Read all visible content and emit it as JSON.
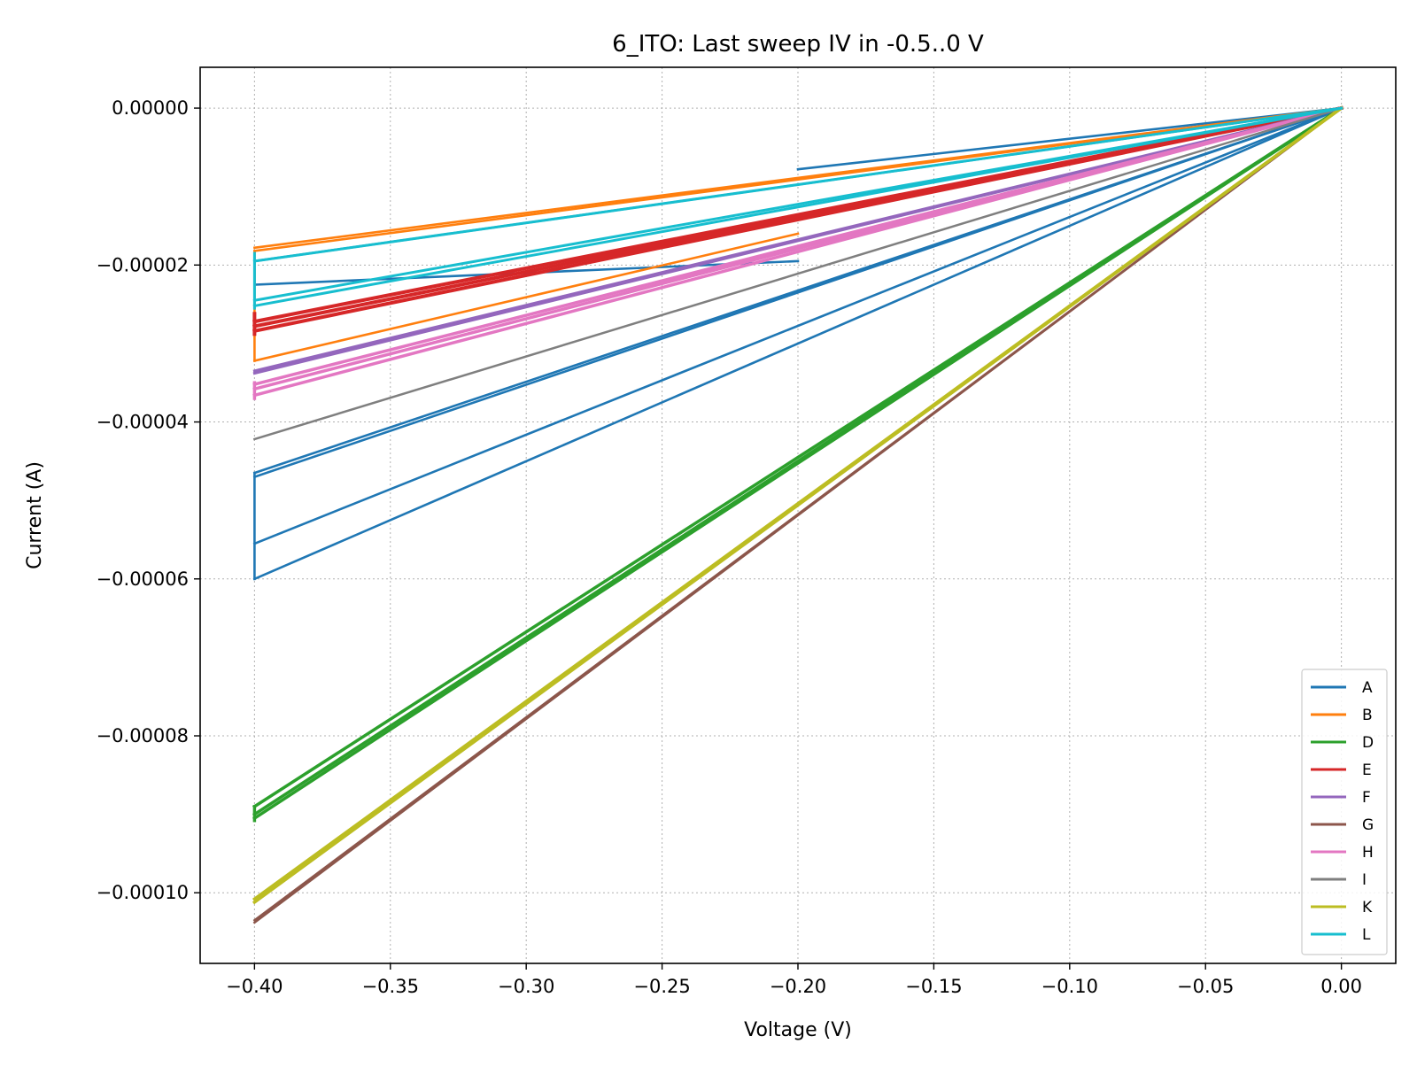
{
  "chart_data": {
    "type": "line",
    "title": "6_ITO: Last sweep IV in -0.5..0 V",
    "xlabel": "Voltage (V)",
    "ylabel": "Current (A)",
    "xlim": [
      -0.42,
      0.02
    ],
    "ylim": [
      -0.000109,
      5.2e-06
    ],
    "xticks": [
      -0.4,
      -0.35,
      -0.3,
      -0.25,
      -0.2,
      -0.15,
      -0.1,
      -0.05,
      0.0
    ],
    "xtick_labels": [
      "−0.40",
      "−0.35",
      "−0.30",
      "−0.25",
      "−0.20",
      "−0.15",
      "−0.10",
      "−0.05",
      "0.00"
    ],
    "yticks": [
      0.0,
      -2e-05,
      -4e-05,
      -6e-05,
      -8e-05,
      -0.0001
    ],
    "ytick_labels": [
      "0.00000",
      "−0.00002",
      "−0.00004",
      "−0.00006",
      "−0.00008",
      "−0.00010"
    ],
    "grid": true,
    "legend_position": "bottom-right",
    "series": [
      {
        "name": "A",
        "color": "#1f77b4",
        "sweeps": [
          [
            [
              0,
              0
            ],
            [
              -0.2,
              -7.8e-06
            ]
          ],
          [
            [
              0,
              0
            ],
            [
              -0.4,
              -1.95e-05
            ]
          ],
          [
            [
              -0.4,
              -1.95e-05
            ],
            [
              -0.4,
              -2.25e-05
            ]
          ],
          [
            [
              -0.4,
              -2.25e-05
            ],
            [
              -0.2,
              -1.95e-05
            ]
          ],
          [
            [
              0,
              0
            ],
            [
              -0.4,
              -4.65e-05
            ]
          ],
          [
            [
              -0.4,
              -4.65e-05
            ],
            [
              -0.4,
              -6e-05
            ]
          ],
          [
            [
              -0.4,
              -6e-05
            ],
            [
              0,
              0
            ]
          ],
          [
            [
              -0.4,
              -5.55e-05
            ],
            [
              0,
              0
            ]
          ],
          [
            [
              -0.4,
              -4.7e-05
            ],
            [
              0,
              0
            ]
          ]
        ]
      },
      {
        "name": "B",
        "color": "#ff7f0e",
        "sweeps": [
          [
            [
              0,
              0
            ],
            [
              -0.4,
              -1.78e-05
            ]
          ],
          [
            [
              0,
              0
            ],
            [
              -0.4,
              -1.82e-05
            ]
          ],
          [
            [
              -0.4,
              -1.82e-05
            ],
            [
              -0.4,
              -3.22e-05
            ]
          ],
          [
            [
              -0.4,
              -3.22e-05
            ],
            [
              -0.2,
              -1.6e-05
            ]
          ]
        ]
      },
      {
        "name": "D",
        "color": "#2ca02c",
        "width": 3.5,
        "sweeps": [
          [
            [
              0,
              0
            ],
            [
              -0.4,
              -8.9e-05
            ]
          ],
          [
            [
              0,
              0
            ],
            [
              -0.4,
              -9e-05
            ]
          ],
          [
            [
              0,
              0
            ],
            [
              -0.4,
              -9.05e-05
            ]
          ],
          [
            [
              -0.4,
              -8.9e-05
            ],
            [
              -0.4,
              -9.08e-05
            ]
          ]
        ]
      },
      {
        "name": "E",
        "color": "#d62728",
        "width": 4,
        "sweeps": [
          [
            [
              0,
              0
            ],
            [
              -0.4,
              -2.72e-05
            ]
          ],
          [
            [
              0,
              0
            ],
            [
              -0.4,
              -2.78e-05
            ]
          ],
          [
            [
              0,
              0
            ],
            [
              -0.4,
              -2.84e-05
            ]
          ],
          [
            [
              -0.4,
              -2.62e-05
            ],
            [
              -0.4,
              -2.88e-05
            ]
          ]
        ]
      },
      {
        "name": "F",
        "color": "#9467bd",
        "width": 3,
        "sweeps": [
          [
            [
              0,
              0
            ],
            [
              -0.4,
              -3.35e-05
            ]
          ],
          [
            [
              0,
              0
            ],
            [
              -0.4,
              -3.38e-05
            ]
          ]
        ]
      },
      {
        "name": "G",
        "color": "#8c564b",
        "width": 2.5,
        "sweeps": [
          [
            [
              0,
              0
            ],
            [
              -0.4,
              -0.0001038
            ]
          ],
          [
            [
              0,
              0
            ],
            [
              -0.4,
              -0.0001035
            ]
          ]
        ]
      },
      {
        "name": "H",
        "color": "#e377c2",
        "width": 3.5,
        "sweeps": [
          [
            [
              0,
              0
            ],
            [
              -0.4,
              -3.52e-05
            ]
          ],
          [
            [
              0,
              0
            ],
            [
              -0.4,
              -3.58e-05
            ]
          ],
          [
            [
              0,
              0
            ],
            [
              -0.4,
              -3.66e-05
            ]
          ],
          [
            [
              -0.4,
              -3.5e-05
            ],
            [
              -0.4,
              -3.7e-05
            ]
          ]
        ]
      },
      {
        "name": "I",
        "color": "#7f7f7f",
        "width": 2.5,
        "sweeps": [
          [
            [
              0,
              0
            ],
            [
              -0.4,
              -4.22e-05
            ]
          ]
        ]
      },
      {
        "name": "K",
        "color": "#bcbd22",
        "width": 3.5,
        "sweeps": [
          [
            [
              0,
              0
            ],
            [
              -0.4,
              -0.0001008
            ]
          ],
          [
            [
              0,
              0
            ],
            [
              -0.4,
              -0.0001012
            ]
          ]
        ]
      },
      {
        "name": "L",
        "color": "#17becf",
        "width": 3,
        "sweeps": [
          [
            [
              0,
              0
            ],
            [
              -0.4,
              -1.95e-05
            ]
          ],
          [
            [
              0,
              0
            ],
            [
              -0.4,
              -2.45e-05
            ]
          ],
          [
            [
              0,
              0
            ],
            [
              -0.4,
              -2.52e-05
            ]
          ],
          [
            [
              -0.4,
              -1.85e-05
            ],
            [
              -0.4,
              -2.55e-05
            ]
          ]
        ]
      }
    ]
  }
}
